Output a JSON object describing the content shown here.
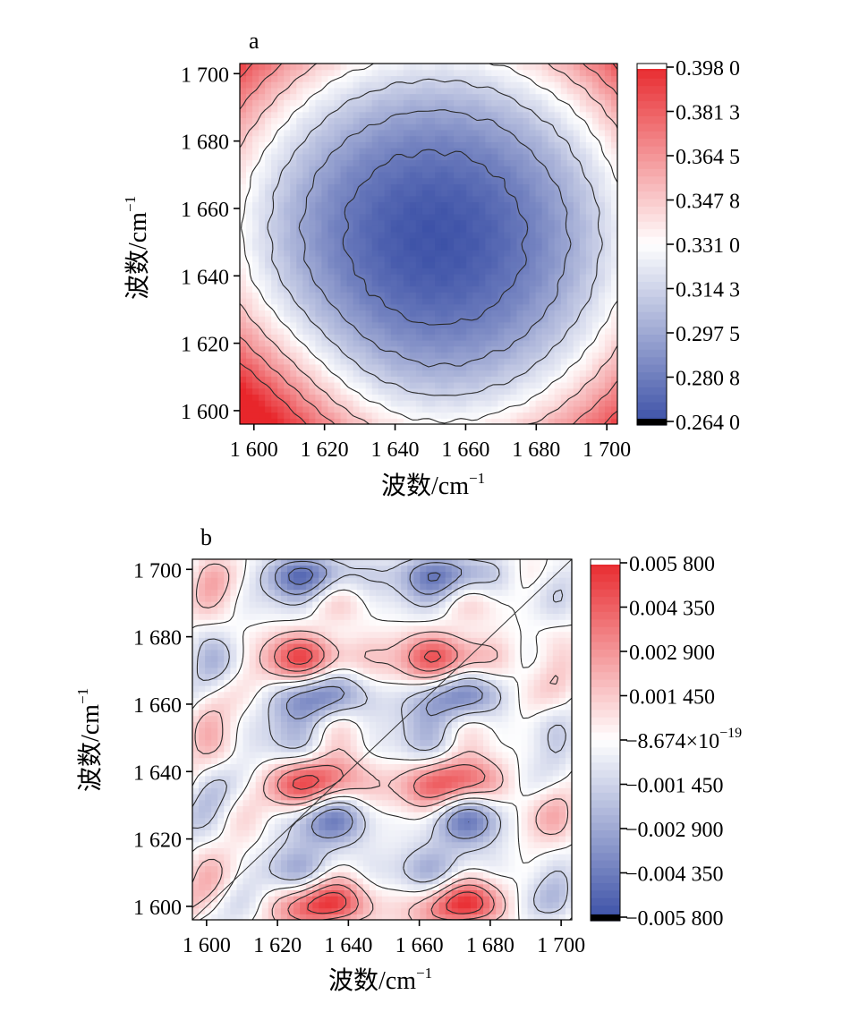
{
  "chart_data": [
    {
      "type": "heatmap",
      "panel_label": "a",
      "title": "",
      "xlabel": "波数/cm",
      "ylabel": "波数/cm",
      "label_exponent": "−1",
      "x_ticks": [
        "1 600",
        "1 620",
        "1 640",
        "1 660",
        "1 680",
        "1 700"
      ],
      "y_ticks": [
        "1 600",
        "1 620",
        "1 640",
        "1 660",
        "1 680",
        "1 700"
      ],
      "x_tick_values": [
        1600,
        1620,
        1640,
        1660,
        1680,
        1700
      ],
      "y_tick_values": [
        1600,
        1620,
        1640,
        1660,
        1680,
        1700
      ],
      "xlim": [
        1596,
        1703
      ],
      "ylim": [
        1596,
        1703
      ],
      "colorbar_labels": [
        "0.398 0",
        "0.381 3",
        "0.364 5",
        "0.347 8",
        "0.331 0",
        "0.314 3",
        "0.297 5",
        "0.280 8",
        "0.264 0"
      ],
      "colorbar_values": [
        0.398,
        0.3813,
        0.3645,
        0.3478,
        0.331,
        0.3143,
        0.2975,
        0.2808,
        0.264
      ],
      "colormap": {
        "low": "#3a4fa6",
        "mid": "#ffffff",
        "high": "#e8262b"
      },
      "contours": true,
      "description_of_field": "synchronous spectrum: minimum ≈0.264 at centre (≈1650,1650), maximum ≈0.398 at corner (1600,1600)"
    },
    {
      "type": "heatmap",
      "panel_label": "b",
      "title": "",
      "xlabel": "波数/cm",
      "ylabel": "波数/cm",
      "label_exponent": "−1",
      "x_ticks": [
        "1 600",
        "1 620",
        "1 640",
        "1 660",
        "1 680",
        "1 700"
      ],
      "y_ticks": [
        "1 600",
        "1 620",
        "1 640",
        "1 660",
        "1 680",
        "1 700"
      ],
      "x_tick_values": [
        1600,
        1620,
        1640,
        1660,
        1680,
        1700
      ],
      "y_tick_values": [
        1600,
        1620,
        1640,
        1660,
        1680,
        1700
      ],
      "xlim": [
        1596,
        1703
      ],
      "ylim": [
        1596,
        1703
      ],
      "colorbar_labels": [
        "0.005 800",
        "0.004 350",
        "0.002 900",
        "0.001 450",
        "−8.674×10",
        "−0.001 450",
        "−0.002 900",
        "−0.004 350",
        "−0.005 800"
      ],
      "colorbar_exponent": "−19",
      "colorbar_values": [
        0.0058,
        0.00435,
        0.0029,
        0.00145,
        -8.674e-19,
        -0.00145,
        -0.0029,
        -0.00435,
        -0.0058
      ],
      "colormap": {
        "low": "#3a4fa6",
        "mid": "#ffffff",
        "high": "#e8262b"
      },
      "contours": true,
      "diagonal_line": true
    }
  ]
}
